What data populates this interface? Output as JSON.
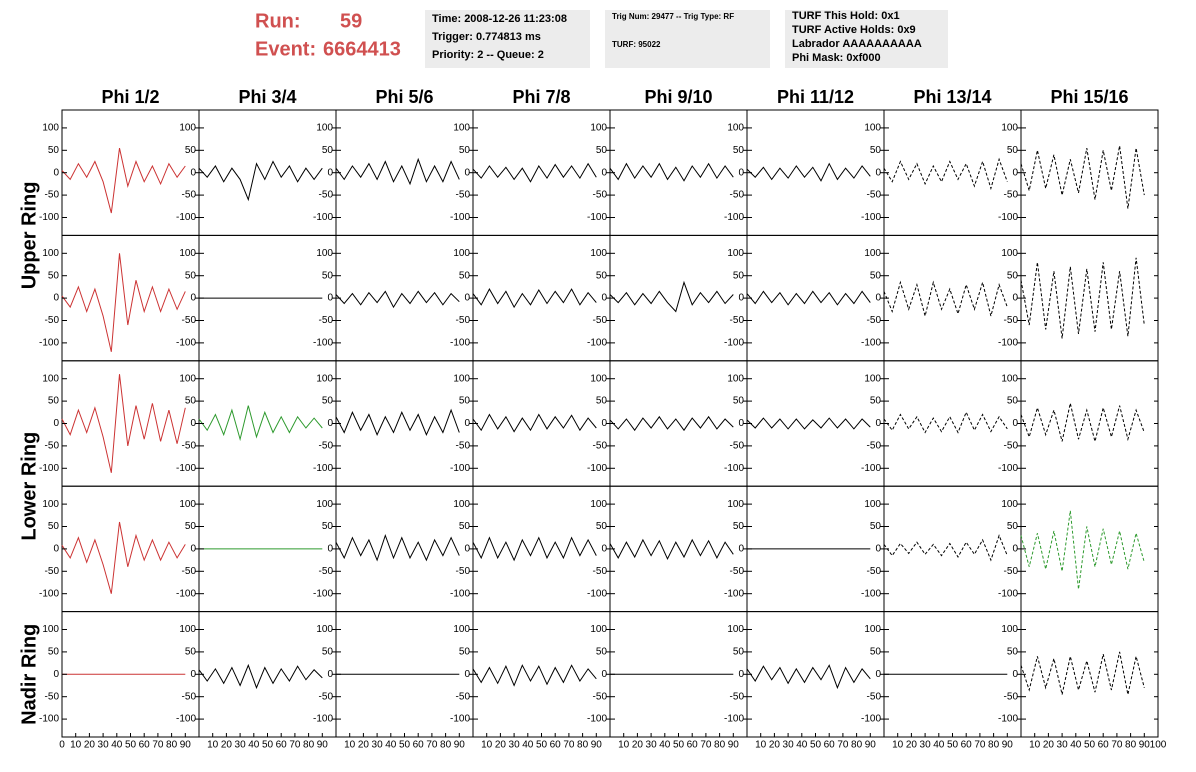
{
  "header": {
    "run_label": "Run:",
    "run": "59",
    "event_label": "Event:",
    "event": "6664413",
    "box1": [
      "Time: 2008-12-26 11:23:08",
      "Trigger: 0.774813 ms",
      "Priority: 2 -- Queue: 2"
    ],
    "box2": [
      "Trig Num: 29477 -- Trig Type: RF",
      "TURF: 95022"
    ],
    "box3": [
      "TURF This Hold: 0x1",
      "TURF Active Holds: 0x9",
      "Labrador AAAAAAAAAA",
      "Phi Mask: 0xf000"
    ]
  },
  "chart_data": {
    "type": "line",
    "columns": [
      "Phi 1/2",
      "Phi 3/4",
      "Phi 5/6",
      "Phi 7/8",
      "Phi 9/10",
      "Phi 11/12",
      "Phi 13/14",
      "Phi 15/16"
    ],
    "rows": [
      "Upper Ring",
      "Lower Ring",
      "Nadir Ring"
    ],
    "xlim": [
      0,
      100
    ],
    "xticks": [
      0,
      10,
      20,
      30,
      40,
      50,
      60,
      70,
      80,
      90,
      100
    ],
    "ylim": [
      -140,
      140
    ],
    "yticks": [
      -100,
      -50,
      0,
      50,
      100
    ],
    "x": [
      0,
      6,
      12,
      18,
      24,
      30,
      36,
      42,
      48,
      54,
      60,
      66,
      72,
      78,
      84,
      90
    ],
    "panels": [
      [
        {
          "color": "#cc3333",
          "values": [
            5,
            -15,
            20,
            -10,
            25,
            -20,
            -90,
            55,
            -30,
            25,
            -20,
            15,
            -25,
            20,
            -10,
            15
          ]
        },
        {
          "color": "#000000",
          "values": [
            10,
            -10,
            15,
            -20,
            10,
            -15,
            -60,
            20,
            -15,
            25,
            -10,
            15,
            -20,
            10,
            -15,
            10
          ]
        },
        {
          "color": "#000000",
          "values": [
            10,
            -15,
            15,
            -10,
            20,
            -15,
            25,
            -20,
            15,
            -25,
            30,
            -20,
            15,
            -20,
            25,
            -15
          ]
        },
        {
          "color": "#000000",
          "values": [
            8,
            -12,
            15,
            -10,
            12,
            -15,
            10,
            -20,
            15,
            -12,
            18,
            -10,
            15,
            -12,
            20,
            -10
          ]
        },
        {
          "color": "#000000",
          "values": [
            10,
            -15,
            20,
            -12,
            15,
            -10,
            20,
            -15,
            12,
            -18,
            15,
            -10,
            20,
            -12,
            15,
            -10
          ]
        },
        {
          "color": "#000000",
          "values": [
            8,
            -10,
            12,
            -15,
            10,
            -12,
            15,
            -10,
            12,
            -18,
            20,
            -15,
            10,
            -12,
            15,
            -8
          ]
        },
        {
          "color": "#000000",
          "dashed": true,
          "values": [
            10,
            -20,
            25,
            -15,
            20,
            -25,
            15,
            -20,
            25,
            -15,
            20,
            -30,
            25,
            -35,
            30,
            -20
          ]
        },
        {
          "color": "#000000",
          "dashed": true,
          "values": [
            20,
            -40,
            50,
            -35,
            40,
            -50,
            30,
            -45,
            55,
            -60,
            50,
            -40,
            60,
            -80,
            55,
            -50
          ]
        }
      ],
      [
        {
          "color": "#cc3333",
          "values": [
            5,
            -20,
            25,
            -30,
            20,
            -40,
            -120,
            100,
            -60,
            40,
            -30,
            25,
            -30,
            20,
            -25,
            15
          ]
        },
        {
          "color": "#000000",
          "values": [
            0,
            0,
            0,
            0,
            0,
            0,
            0,
            0,
            0,
            0,
            0,
            0,
            0,
            0,
            0,
            0
          ]
        },
        {
          "color": "#000000",
          "values": [
            8,
            -12,
            10,
            -15,
            12,
            -10,
            15,
            -20,
            10,
            -12,
            15,
            -10,
            12,
            -15,
            10,
            -8
          ]
        },
        {
          "color": "#000000",
          "values": [
            10,
            -15,
            20,
            -12,
            15,
            -20,
            10,
            -15,
            18,
            -12,
            15,
            -10,
            20,
            -15,
            12,
            -10
          ]
        },
        {
          "color": "#000000",
          "values": [
            8,
            -10,
            12,
            -15,
            10,
            -12,
            15,
            -10,
            -30,
            35,
            -15,
            12,
            -10,
            15,
            -12,
            8
          ]
        },
        {
          "color": "#000000",
          "values": [
            10,
            -12,
            15,
            -10,
            12,
            -15,
            10,
            -12,
            15,
            -10,
            12,
            -15,
            10,
            -12,
            15,
            -10
          ]
        },
        {
          "color": "#000000",
          "dashed": true,
          "values": [
            15,
            -30,
            35,
            -25,
            30,
            -40,
            35,
            -25,
            20,
            -35,
            30,
            -25,
            35,
            -40,
            30,
            -20
          ]
        },
        {
          "color": "#000000",
          "dashed": true,
          "values": [
            40,
            -60,
            80,
            -70,
            60,
            -90,
            70,
            -80,
            65,
            -75,
            80,
            -70,
            60,
            -85,
            90,
            -60
          ]
        }
      ],
      [
        {
          "color": "#cc3333",
          "values": [
            10,
            -25,
            30,
            -20,
            35,
            -30,
            -110,
            110,
            -50,
            40,
            -35,
            45,
            -40,
            30,
            -45,
            35
          ]
        },
        {
          "color": "#2e9a2e",
          "values": [
            10,
            -15,
            20,
            -25,
            30,
            -35,
            40,
            -30,
            25,
            -20,
            15,
            -20,
            15,
            -10,
            12,
            -10
          ]
        },
        {
          "color": "#000000",
          "values": [
            15,
            -20,
            25,
            -15,
            20,
            -25,
            15,
            -20,
            25,
            -15,
            20,
            -25,
            15,
            -20,
            30,
            -20
          ]
        },
        {
          "color": "#000000",
          "values": [
            10,
            -15,
            20,
            -12,
            15,
            -18,
            12,
            -15,
            20,
            -12,
            15,
            -10,
            18,
            -15,
            12,
            -10
          ]
        },
        {
          "color": "#000000",
          "values": [
            8,
            -12,
            10,
            -15,
            12,
            -10,
            15,
            -12,
            10,
            -15,
            12,
            -10,
            15,
            -12,
            10,
            -8
          ]
        },
        {
          "color": "#000000",
          "values": [
            8,
            -10,
            12,
            -10,
            10,
            -12,
            10,
            -12,
            8,
            -10,
            12,
            -10,
            10,
            -12,
            10,
            -8
          ]
        },
        {
          "color": "#000000",
          "dashed": true,
          "values": [
            10,
            -15,
            20,
            -12,
            15,
            -20,
            12,
            -18,
            15,
            -20,
            25,
            -15,
            20,
            -18,
            15,
            -12
          ]
        },
        {
          "color": "#000000",
          "dashed": true,
          "values": [
            20,
            -30,
            35,
            -25,
            30,
            -40,
            45,
            -35,
            30,
            -40,
            35,
            -30,
            40,
            -35,
            30,
            -20
          ]
        }
      ],
      [
        {
          "color": "#cc3333",
          "values": [
            8,
            -20,
            25,
            -30,
            20,
            -35,
            -100,
            60,
            -40,
            30,
            -25,
            20,
            -25,
            15,
            -20,
            10
          ]
        },
        {
          "color": "#2e9a2e",
          "values": [
            0,
            0,
            0,
            0,
            0,
            0,
            0,
            0,
            0,
            0,
            0,
            0,
            0,
            0,
            0,
            0
          ]
        },
        {
          "color": "#000000",
          "values": [
            15,
            -20,
            25,
            -15,
            20,
            -25,
            30,
            -20,
            25,
            -20,
            15,
            -25,
            20,
            -15,
            25,
            -15
          ]
        },
        {
          "color": "#000000",
          "values": [
            15,
            -20,
            25,
            -20,
            15,
            -25,
            20,
            -15,
            25,
            -20,
            15,
            -20,
            25,
            -15,
            20,
            -15
          ]
        },
        {
          "color": "#000000",
          "values": [
            12,
            -20,
            15,
            -18,
            20,
            -15,
            18,
            -22,
            15,
            -18,
            20,
            -15,
            18,
            -20,
            15,
            -12
          ]
        },
        {
          "color": "#000000",
          "values": [
            0,
            0,
            0,
            0,
            0,
            0,
            0,
            0,
            0,
            0,
            0,
            0,
            0,
            0,
            0,
            0
          ]
        },
        {
          "color": "#000000",
          "dashed": true,
          "values": [
            10,
            -15,
            12,
            -10,
            15,
            -12,
            10,
            -15,
            12,
            -18,
            15,
            -12,
            20,
            -25,
            30,
            -15
          ]
        },
        {
          "color": "#2e9a2e",
          "dashed": true,
          "values": [
            30,
            -40,
            35,
            -45,
            40,
            -50,
            85,
            -90,
            50,
            -40,
            45,
            -35,
            40,
            -45,
            35,
            -30
          ]
        }
      ],
      [
        {
          "color": "#cc3333",
          "values": [
            0,
            0,
            0,
            0,
            0,
            0,
            0,
            0,
            0,
            0,
            0,
            0,
            0,
            0,
            0,
            0
          ]
        },
        {
          "color": "#000000",
          "values": [
            10,
            -15,
            12,
            -20,
            15,
            -25,
            20,
            -30,
            15,
            -20,
            12,
            -15,
            18,
            -12,
            10,
            -8
          ]
        },
        {
          "color": "#000000",
          "values": [
            0,
            0,
            0,
            0,
            0,
            0,
            0,
            0,
            0,
            0,
            0,
            0,
            0,
            0,
            0,
            0
          ]
        },
        {
          "color": "#000000",
          "values": [
            12,
            -18,
            15,
            -20,
            18,
            -25,
            20,
            -15,
            18,
            -22,
            15,
            -18,
            20,
            -15,
            12,
            -10
          ]
        },
        {
          "color": "#000000",
          "values": [
            0,
            0,
            0,
            0,
            0,
            0,
            0,
            0,
            0,
            0,
            0,
            0,
            0,
            0,
            0,
            0
          ]
        },
        {
          "color": "#000000",
          "values": [
            12,
            -15,
            18,
            -12,
            15,
            -20,
            12,
            -18,
            15,
            -12,
            20,
            -30,
            15,
            -18,
            12,
            -10
          ]
        },
        {
          "color": "#000000",
          "values": [
            0,
            0,
            0,
            0,
            0,
            0,
            0,
            0,
            0,
            0,
            0,
            0,
            0,
            0,
            0,
            0
          ]
        },
        {
          "color": "#000000",
          "dashed": true,
          "values": [
            20,
            -35,
            40,
            -30,
            35,
            -45,
            40,
            -35,
            30,
            -40,
            45,
            -35,
            50,
            -45,
            40,
            -30
          ]
        }
      ]
    ]
  }
}
